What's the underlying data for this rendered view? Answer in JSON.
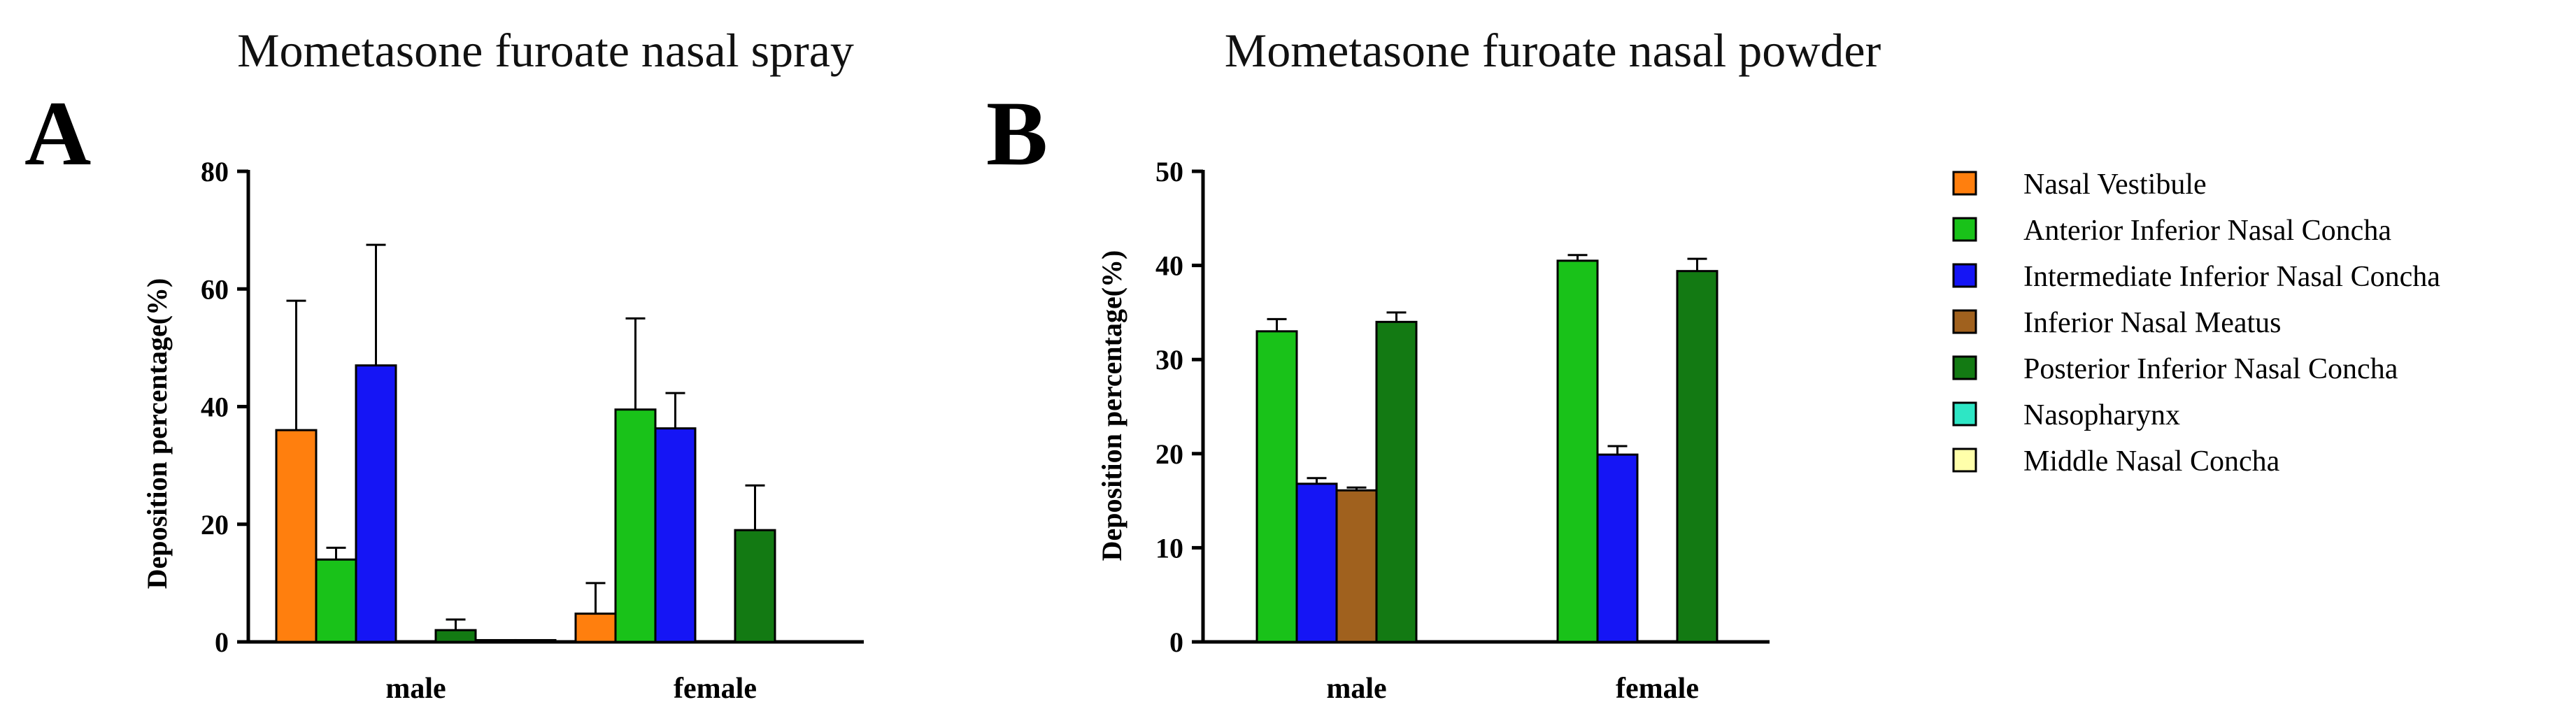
{
  "chart_data": [
    {
      "panel_label": "A",
      "type": "bar",
      "title": "Mometasone furoate nasal spray",
      "xlabel": "",
      "ylabel": "Deposition percentage(%)",
      "ylim": [
        0,
        80
      ],
      "yticks": [
        0,
        20,
        40,
        60,
        80
      ],
      "categories": [
        "male",
        "female"
      ],
      "grid": false,
      "series": [
        {
          "name": "Nasal Vestibule",
          "values": [
            36,
            4.8
          ],
          "errors": [
            22,
            5.2
          ]
        },
        {
          "name": "Anterior Inferior Nasal Concha",
          "values": [
            14,
            39.5
          ],
          "errors": [
            2,
            15.5
          ]
        },
        {
          "name": "Intermediate Inferior Nasal Concha",
          "values": [
            47,
            36.3
          ],
          "errors": [
            20.5,
            6
          ]
        },
        {
          "name": "Inferior Nasal Meatus",
          "values": [
            0,
            0
          ],
          "errors": [
            0,
            0
          ]
        },
        {
          "name": "Posterior Inferior Nasal Concha",
          "values": [
            2,
            19
          ],
          "errors": [
            1.8,
            7.6
          ]
        },
        {
          "name": "Nasopharynx",
          "values": [
            0.3,
            0
          ],
          "errors": [
            0,
            0
          ]
        },
        {
          "name": "Middle Nasal Concha",
          "values": [
            0.3,
            0
          ],
          "errors": [
            0,
            0
          ]
        }
      ]
    },
    {
      "panel_label": "B",
      "type": "bar",
      "title": "Mometasone furoate nasal powder",
      "xlabel": "",
      "ylabel": "Deposition percentage(%)",
      "ylim": [
        0,
        50
      ],
      "yticks": [
        0,
        10,
        20,
        30,
        40,
        50
      ],
      "categories": [
        "male",
        "female"
      ],
      "grid": false,
      "series": [
        {
          "name": "Nasal Vestibule",
          "values": [
            0,
            0
          ],
          "errors": [
            0,
            0
          ]
        },
        {
          "name": "Anterior Inferior Nasal Concha",
          "values": [
            33,
            40.5
          ],
          "errors": [
            1.3,
            0.6
          ]
        },
        {
          "name": "Intermediate Inferior Nasal Concha",
          "values": [
            16.8,
            19.9
          ],
          "errors": [
            0.6,
            0.9
          ]
        },
        {
          "name": "Inferior Nasal Meatus",
          "values": [
            16.1,
            0
          ],
          "errors": [
            0.3,
            0
          ]
        },
        {
          "name": "Posterior Inferior Nasal Concha",
          "values": [
            34,
            39.4
          ],
          "errors": [
            1,
            1.3
          ]
        },
        {
          "name": "Nasopharynx",
          "values": [
            0,
            0
          ],
          "errors": [
            0,
            0
          ]
        },
        {
          "name": "Middle Nasal Concha",
          "values": [
            0,
            0
          ],
          "errors": [
            0,
            0
          ]
        }
      ]
    }
  ],
  "legend": {
    "placement": "right",
    "entries": [
      {
        "name": "Nasal Vestibule",
        "color": "#FF7F0E"
      },
      {
        "name": "Anterior Inferior Nasal Concha",
        "color": "#19C219"
      },
      {
        "name": "Intermediate Inferior Nasal Concha",
        "color": "#1515F5"
      },
      {
        "name": "Inferior Nasal Meatus",
        "color": "#A0611E"
      },
      {
        "name": "Posterior Inferior Nasal Concha",
        "color": "#137A13"
      },
      {
        "name": "Nasopharynx",
        "color": "#2EE6C5"
      },
      {
        "name": "Middle Nasal Concha",
        "color": "#FFFFAA"
      }
    ]
  }
}
